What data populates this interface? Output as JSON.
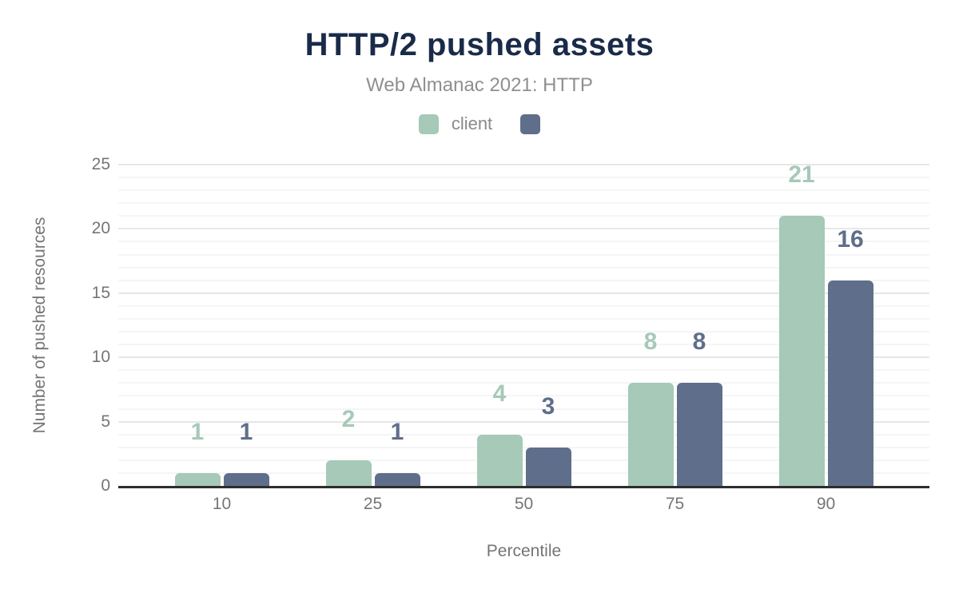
{
  "header": {
    "title": "HTTP/2 pushed assets",
    "subtitle": "Web Almanac 2021: HTTP"
  },
  "legend": {
    "items": [
      {
        "label": "client",
        "color": "#a6c9b8"
      },
      {
        "label": "",
        "color": "#5f6e8a"
      }
    ]
  },
  "chart_data": {
    "type": "bar",
    "title": "HTTP/2 pushed assets",
    "subtitle": "Web Almanac 2021: HTTP",
    "categories": [
      "10",
      "25",
      "50",
      "75",
      "90"
    ],
    "series": [
      {
        "name": "client",
        "color": "#a6c9b8",
        "values": [
          1,
          2,
          4,
          8,
          21
        ]
      },
      {
        "name": "",
        "color": "#5f6e8a",
        "values": [
          1,
          1,
          3,
          8,
          16
        ]
      }
    ],
    "xlabel": "Percentile",
    "ylabel": "Number of pushed resources",
    "ylim": [
      0,
      25
    ],
    "yticks": [
      0,
      5,
      10,
      15,
      20,
      25
    ],
    "minor_tick_step": 1,
    "major_tick_step": 5,
    "grid": true,
    "legend_position": "top",
    "data_labels": true
  },
  "colors": {
    "title": "#1a2b49",
    "subtitle": "#8f8f8f",
    "axis_text": "#757575",
    "legend_text": "#8a8a8a",
    "axis_line": "#2e2e2e",
    "grid_major": "#e7e7e7",
    "grid_minor": "#f5f5f5",
    "background": "#ffffff"
  }
}
